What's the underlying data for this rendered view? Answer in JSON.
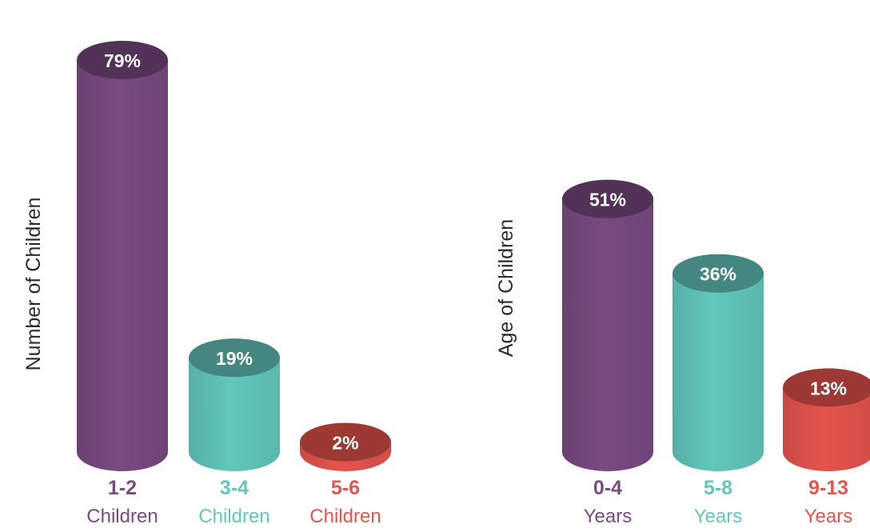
{
  "colors": {
    "purple": "#7a4a82",
    "teal": "#62c7bc",
    "red": "#e5544d"
  },
  "chart_data": [
    {
      "type": "bar",
      "style": "3d-cylinder",
      "ylabel": "Number of Children",
      "categories": [
        {
          "top": "1-2",
          "bottom": "Children",
          "color": "purple"
        },
        {
          "top": "3-4",
          "bottom": "Children",
          "color": "teal"
        },
        {
          "top": "5-6",
          "bottom": "Children",
          "color": "red"
        }
      ],
      "values": [
        79,
        19,
        2
      ],
      "labels": [
        "79%",
        "19%",
        "2%"
      ],
      "unit": "%",
      "ylim": [
        0,
        79
      ]
    },
    {
      "type": "bar",
      "style": "3d-cylinder",
      "ylabel": "Age of Children",
      "categories": [
        {
          "top": "0-4",
          "bottom": "Years",
          "color": "purple"
        },
        {
          "top": "5-8",
          "bottom": "Years",
          "color": "teal"
        },
        {
          "top": "9-13",
          "bottom": "Years",
          "color": "red"
        }
      ],
      "values": [
        51,
        36,
        13
      ],
      "labels": [
        "51%",
        "36%",
        "13%"
      ],
      "unit": "%",
      "ylim": [
        0,
        79
      ]
    }
  ]
}
